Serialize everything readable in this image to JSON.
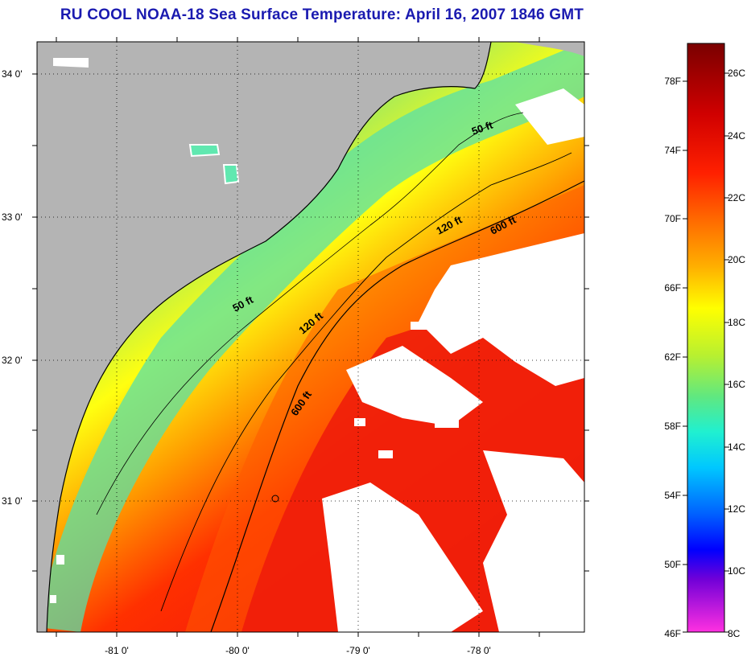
{
  "title": "RU COOL  NOAA-18  Sea Surface Temperature:  April 16, 2007 1846 GMT",
  "map": {
    "lat_labels": [
      "34 0'",
      "33 0'",
      "32 0'",
      "31 0'"
    ],
    "lon_labels": [
      "-81 0'",
      "-80 0'",
      "-79 0'",
      "-78 0'"
    ],
    "contour_labels": [
      "50 ft",
      "120 ft",
      "600 ft",
      "50 ft",
      "120 ft",
      "600 ft"
    ],
    "colors": {
      "land": "#b4b4b4",
      "cloud": "#ffffff",
      "coastline": "#000000"
    }
  },
  "colorbar": {
    "fahrenheit_labels": [
      "78F",
      "74F",
      "70F",
      "66F",
      "62F",
      "58F",
      "54F",
      "50F",
      "46F"
    ],
    "celsius_labels": [
      "26C",
      "24C",
      "22C",
      "20C",
      "18C",
      "16C",
      "14C",
      "12C",
      "10C",
      "8C"
    ],
    "gradient_colors": [
      "#7a0000",
      "#d80000",
      "#ff2000",
      "#ff6a00",
      "#ffb000",
      "#ffff00",
      "#b8f030",
      "#60e880",
      "#20f0d0",
      "#00c8ff",
      "#0060ff",
      "#0000ff",
      "#a000e0",
      "#ff30e0"
    ]
  }
}
